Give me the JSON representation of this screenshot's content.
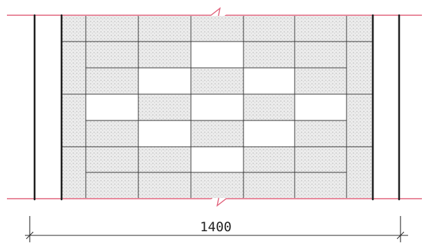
{
  "drawing": {
    "dimension_label": "1400",
    "colors": {
      "paper": "#ffffff",
      "line": "#2a2a2a",
      "break_line": "#e0607a",
      "stipple": "#e9e9e9",
      "stipple_dot": "#9a9a9a"
    }
  }
}
